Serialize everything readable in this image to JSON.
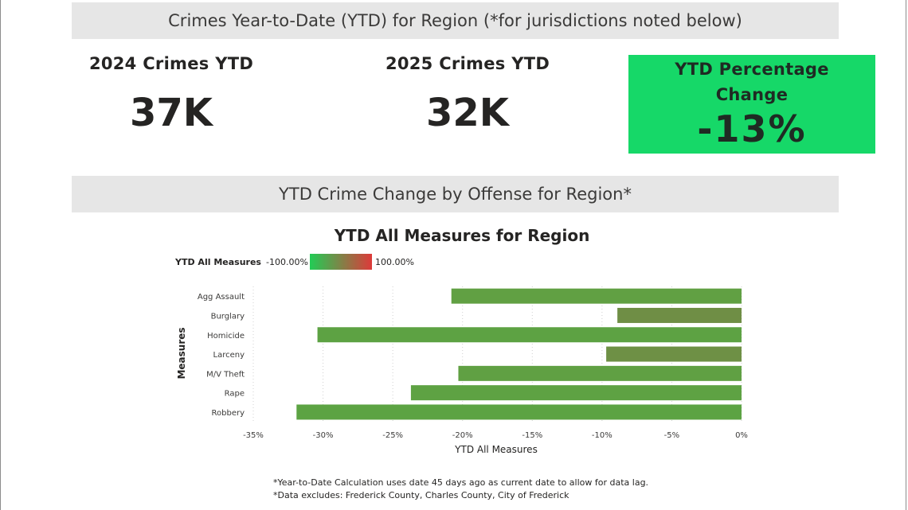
{
  "banners": {
    "top": "Crimes Year-to-Date (YTD) for Region (*for jurisdictions noted below)",
    "middle": "YTD Crime Change by Offense for Region*"
  },
  "kpis": {
    "crimes_2024": {
      "label": "2024 Crimes YTD",
      "value": "37K"
    },
    "crimes_2025": {
      "label": "2025 Crimes YTD",
      "value": "32K"
    },
    "pct_change": {
      "label_line1": "YTD Percentage",
      "label_line2": "Change",
      "value": "-13%",
      "color": "#16d868"
    }
  },
  "legend": {
    "title": "YTD All Measures",
    "min_label": "-100.00%",
    "max_label": "100.00%",
    "gradient_start": "#22cc55",
    "gradient_end": "#dd3a3a"
  },
  "chart_data": {
    "type": "bar",
    "orientation": "horizontal",
    "title": "YTD All Measures for Region",
    "xlabel": "YTD All Measures",
    "ylabel": "Measures",
    "categories": [
      "Agg Assault",
      "Burglary",
      "Homicide",
      "Larceny",
      "M/V Theft",
      "Rape",
      "Robbery"
    ],
    "values": [
      -20.8,
      -8.9,
      -30.4,
      -9.7,
      -20.3,
      -23.7,
      -31.9
    ],
    "xlim": [
      -35,
      0
    ],
    "xticks": [
      -35,
      -30,
      -25,
      -20,
      -15,
      -10,
      -5,
      0
    ],
    "xtick_labels": [
      "-35%",
      "-30%",
      "-25%",
      "-20%",
      "-15%",
      "-10%",
      "-5%",
      "0%"
    ],
    "grid": true,
    "bar_colors": [
      "#61a043",
      "#6f8e45",
      "#5da243",
      "#6e9045",
      "#60a043",
      "#5ea243",
      "#5ca343"
    ]
  },
  "footnotes": [
    "*Year-to-Date Calculation uses date 45 days ago as current date to allow for data lag.",
    "*Data excludes: Frederick County, Charles County, City of Frederick"
  ]
}
